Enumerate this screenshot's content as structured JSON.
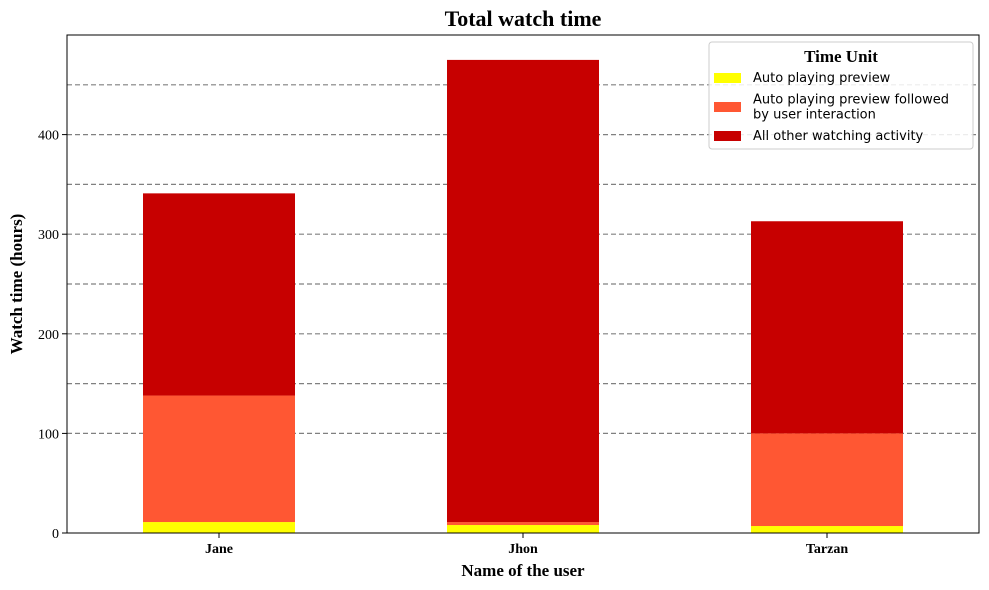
{
  "chart_data": {
    "type": "bar",
    "stacked": true,
    "title": "Total watch time",
    "xlabel": "Name of the user",
    "ylabel": "Watch time (hours)",
    "categories": [
      "Jane",
      "Jhon",
      "Tarzan"
    ],
    "ylim": [
      0,
      500
    ],
    "yticks": [
      0,
      100,
      200,
      300,
      400
    ],
    "gridlines_y": [
      100,
      150,
      200,
      250,
      300,
      350,
      400,
      450
    ],
    "grid": "horizontal dashed",
    "legend_title": "Time Unit",
    "legend_position": "top-right",
    "series": [
      {
        "name": "Auto playing preview",
        "values": [
          11,
          8,
          7
        ],
        "color": "#ffff00"
      },
      {
        "name": "Auto playing preview followed by user interaction",
        "legend_lines": [
          "Auto playing preview followed",
          "by user interaction"
        ],
        "values": [
          127,
          3,
          93
        ],
        "color": "#ff5733"
      },
      {
        "name": "All other watching activity",
        "values": [
          203,
          464,
          213
        ],
        "color": "#c70000"
      }
    ]
  }
}
